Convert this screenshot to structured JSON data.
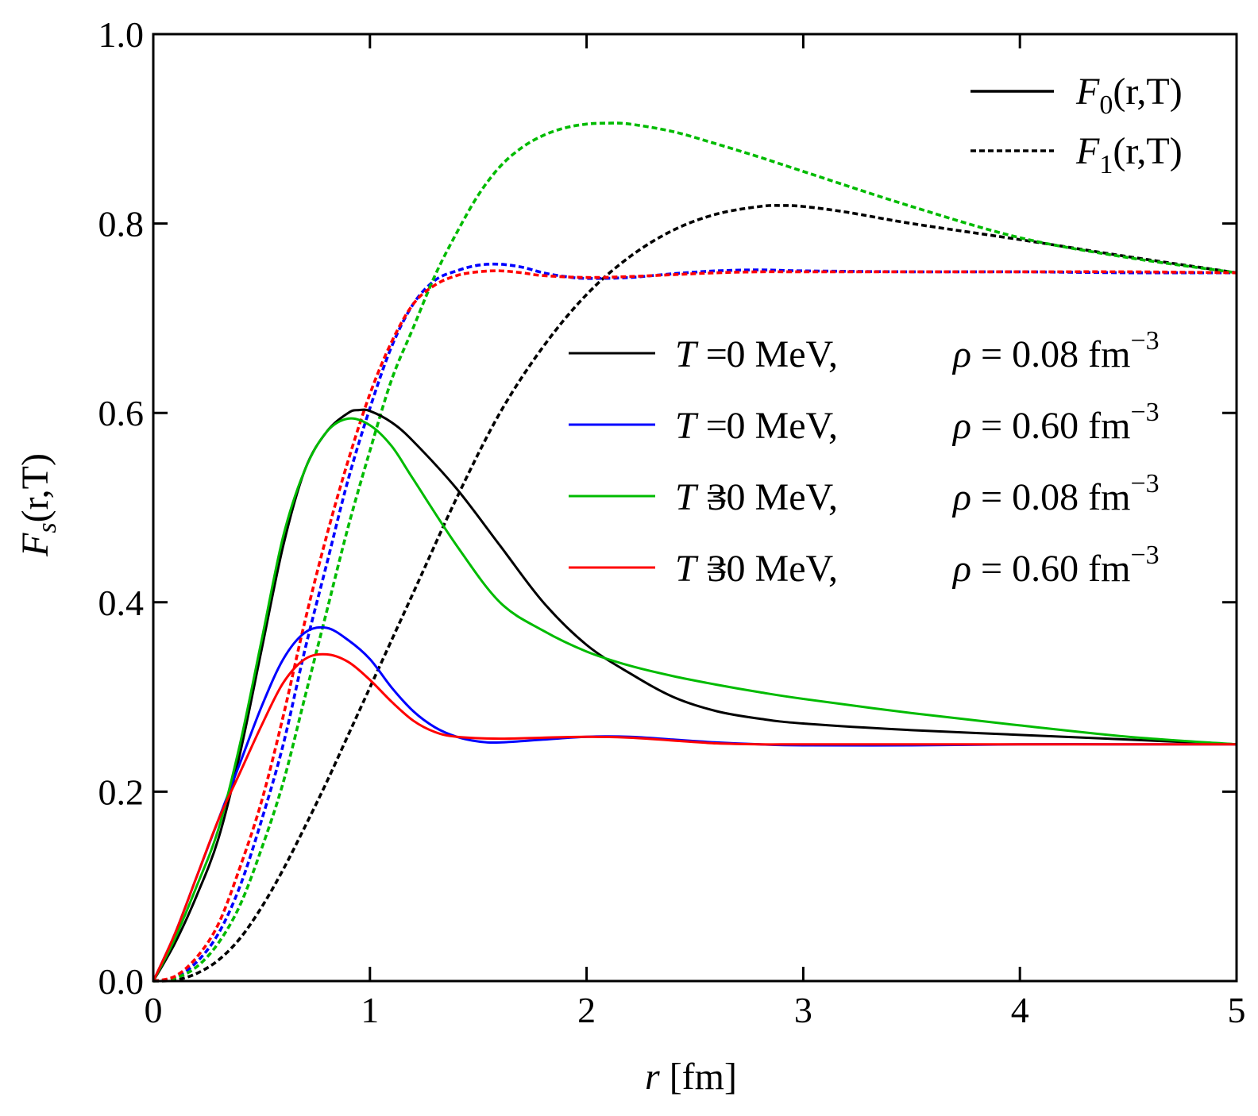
{
  "chart_data": {
    "type": "line",
    "xlabel": {
      "italic": "r",
      "rest": " [fm]"
    },
    "ylabel": {
      "main": "F",
      "sub": "s",
      "rest": "(r,T)"
    },
    "xlim": [
      0,
      5
    ],
    "ylim": [
      0,
      1
    ],
    "xticks": [
      0,
      1,
      2,
      3,
      4,
      5
    ],
    "xtick_labels": [
      "0",
      "1",
      "2",
      "3",
      "4",
      "5"
    ],
    "yticks": [
      0.0,
      0.2,
      0.4,
      0.6,
      0.8,
      1.0
    ],
    "ytick_labels": [
      "0.0",
      "0.2",
      "0.4",
      "0.6",
      "0.8",
      "1.0"
    ],
    "grid": false,
    "legend_style": [
      {
        "label": "F0(r,T)",
        "main": "F",
        "sub": "0",
        "rest": "(r,T)",
        "dash": "solid"
      },
      {
        "label": "F1(r,T)",
        "main": "F",
        "sub": "1",
        "rest": "(r,T)",
        "dash": "dashed"
      }
    ],
    "legend_style_position": "top-right",
    "legend_series_position": "center-right",
    "series": [
      {
        "name": "F0, T = 0 MeV, ρ = 0.08 fm⁻³",
        "legend": {
          "T": "0",
          "rho": "0.08"
        },
        "color": "#000000",
        "dash": "solid",
        "x": [
          0,
          0.1,
          0.2,
          0.3,
          0.4,
          0.5,
          0.6,
          0.7,
          0.8,
          0.9,
          0.95,
          1.0,
          1.1,
          1.2,
          1.4,
          1.6,
          1.8,
          2.0,
          2.2,
          2.4,
          2.6,
          2.8,
          3.0,
          3.5,
          4.0,
          4.5,
          5.0
        ],
        "y": [
          0,
          0.04,
          0.09,
          0.15,
          0.24,
          0.35,
          0.46,
          0.54,
          0.58,
          0.6,
          0.603,
          0.602,
          0.59,
          0.57,
          0.52,
          0.46,
          0.4,
          0.355,
          0.325,
          0.3,
          0.285,
          0.277,
          0.272,
          0.265,
          0.26,
          0.255,
          0.25
        ]
      },
      {
        "name": "F0, T = 0 MeV, ρ = 0.60 fm⁻³",
        "legend": {
          "T": "0",
          "rho": "0.60"
        },
        "color": "#0000ff",
        "dash": "solid",
        "x": [
          0,
          0.1,
          0.2,
          0.3,
          0.4,
          0.5,
          0.6,
          0.7,
          0.8,
          0.9,
          1.0,
          1.1,
          1.2,
          1.3,
          1.4,
          1.5,
          1.6,
          1.8,
          2.0,
          2.2,
          2.4,
          2.6,
          2.8,
          3.0,
          3.5,
          4.0,
          4.5,
          5.0
        ],
        "y": [
          0,
          0.05,
          0.11,
          0.17,
          0.23,
          0.29,
          0.34,
          0.368,
          0.373,
          0.36,
          0.34,
          0.31,
          0.285,
          0.268,
          0.258,
          0.253,
          0.252,
          0.255,
          0.258,
          0.258,
          0.255,
          0.252,
          0.25,
          0.249,
          0.249,
          0.25,
          0.25,
          0.25
        ]
      },
      {
        "name": "F0, T = 30 MeV, ρ = 0.08 fm⁻³",
        "legend": {
          "T": "30",
          "rho": "0.08"
        },
        "color": "#00bb00",
        "dash": "solid",
        "x": [
          0,
          0.1,
          0.2,
          0.3,
          0.4,
          0.5,
          0.6,
          0.7,
          0.8,
          0.9,
          1.0,
          1.1,
          1.2,
          1.4,
          1.6,
          1.8,
          2.0,
          2.2,
          2.4,
          2.6,
          2.8,
          3.0,
          3.5,
          4.0,
          4.5,
          5.0
        ],
        "y": [
          0,
          0.045,
          0.1,
          0.16,
          0.25,
          0.36,
          0.47,
          0.54,
          0.58,
          0.594,
          0.587,
          0.565,
          0.53,
          0.46,
          0.4,
          0.37,
          0.348,
          0.333,
          0.322,
          0.313,
          0.305,
          0.298,
          0.283,
          0.27,
          0.258,
          0.25
        ]
      },
      {
        "name": "F0, T = 30 MeV, ρ = 0.60 fm⁻³",
        "legend": {
          "T": "30",
          "rho": "0.60"
        },
        "color": "#ff0000",
        "dash": "solid",
        "x": [
          0,
          0.1,
          0.2,
          0.3,
          0.4,
          0.5,
          0.6,
          0.7,
          0.8,
          0.9,
          1.0,
          1.1,
          1.2,
          1.3,
          1.4,
          1.6,
          1.8,
          2.0,
          2.2,
          2.4,
          2.6,
          2.8,
          3.0,
          3.5,
          4.0,
          4.5,
          5.0
        ],
        "y": [
          0,
          0.05,
          0.11,
          0.17,
          0.22,
          0.27,
          0.315,
          0.34,
          0.345,
          0.337,
          0.318,
          0.295,
          0.275,
          0.263,
          0.258,
          0.256,
          0.257,
          0.258,
          0.257,
          0.254,
          0.251,
          0.25,
          0.25,
          0.25,
          0.25,
          0.25,
          0.25
        ]
      },
      {
        "name": "F1, T = 0 MeV, ρ = 0.08 fm⁻³",
        "color": "#000000",
        "dash": "dashed",
        "x": [
          0,
          0.1,
          0.2,
          0.3,
          0.4,
          0.5,
          0.6,
          0.7,
          0.8,
          0.9,
          1.0,
          1.2,
          1.4,
          1.6,
          1.8,
          2.0,
          2.2,
          2.4,
          2.6,
          2.8,
          2.9,
          3.0,
          3.2,
          3.5,
          4.0,
          4.5,
          5.0
        ],
        "y": [
          0,
          0.001,
          0.008,
          0.022,
          0.045,
          0.078,
          0.118,
          0.163,
          0.21,
          0.26,
          0.31,
          0.41,
          0.51,
          0.6,
          0.67,
          0.725,
          0.765,
          0.793,
          0.81,
          0.818,
          0.819,
          0.818,
          0.812,
          0.8,
          0.783,
          0.765,
          0.748
        ]
      },
      {
        "name": "F1, T = 0 MeV, ρ = 0.60 fm⁻³",
        "color": "#0000ff",
        "dash": "dashed",
        "x": [
          0,
          0.1,
          0.2,
          0.3,
          0.4,
          0.5,
          0.6,
          0.7,
          0.8,
          0.9,
          1.0,
          1.1,
          1.2,
          1.3,
          1.4,
          1.5,
          1.6,
          1.7,
          1.8,
          1.9,
          2.0,
          2.2,
          2.4,
          2.6,
          2.8,
          3.0,
          3.5,
          4.0,
          4.5,
          5.0
        ],
        "y": [
          0,
          0.004,
          0.02,
          0.05,
          0.1,
          0.17,
          0.25,
          0.35,
          0.44,
          0.53,
          0.605,
          0.67,
          0.715,
          0.74,
          0.75,
          0.756,
          0.757,
          0.754,
          0.748,
          0.744,
          0.742,
          0.743,
          0.747,
          0.75,
          0.751,
          0.75,
          0.749,
          0.749,
          0.748,
          0.748
        ]
      },
      {
        "name": "F1, T = 30 MeV, ρ = 0.08 fm⁻³",
        "color": "#00bb00",
        "dash": "dashed",
        "x": [
          0,
          0.1,
          0.2,
          0.3,
          0.4,
          0.5,
          0.6,
          0.7,
          0.8,
          0.9,
          1.0,
          1.1,
          1.2,
          1.3,
          1.4,
          1.5,
          1.6,
          1.7,
          1.8,
          1.9,
          2.0,
          2.1,
          2.2,
          2.4,
          2.6,
          2.8,
          3.0,
          3.5,
          4.0,
          4.5,
          5.0
        ],
        "y": [
          0,
          0.003,
          0.015,
          0.04,
          0.08,
          0.14,
          0.21,
          0.3,
          0.39,
          0.48,
          0.56,
          0.635,
          0.69,
          0.745,
          0.79,
          0.83,
          0.86,
          0.88,
          0.893,
          0.901,
          0.905,
          0.906,
          0.905,
          0.897,
          0.884,
          0.87,
          0.855,
          0.818,
          0.785,
          0.764,
          0.748
        ]
      },
      {
        "name": "F1, T = 30 MeV, ρ = 0.60 fm⁻³",
        "color": "#ff0000",
        "dash": "dashed",
        "x": [
          0,
          0.1,
          0.2,
          0.3,
          0.4,
          0.5,
          0.6,
          0.7,
          0.8,
          0.9,
          1.0,
          1.1,
          1.2,
          1.3,
          1.4,
          1.5,
          1.6,
          1.7,
          1.8,
          2.0,
          2.2,
          2.4,
          2.6,
          2.8,
          3.0,
          3.5,
          4.0,
          4.5,
          5.0
        ],
        "y": [
          0,
          0.005,
          0.025,
          0.06,
          0.12,
          0.19,
          0.28,
          0.38,
          0.47,
          0.55,
          0.62,
          0.675,
          0.715,
          0.735,
          0.745,
          0.749,
          0.75,
          0.748,
          0.745,
          0.743,
          0.744,
          0.746,
          0.748,
          0.749,
          0.749,
          0.749,
          0.749,
          0.749,
          0.748
        ]
      }
    ]
  }
}
